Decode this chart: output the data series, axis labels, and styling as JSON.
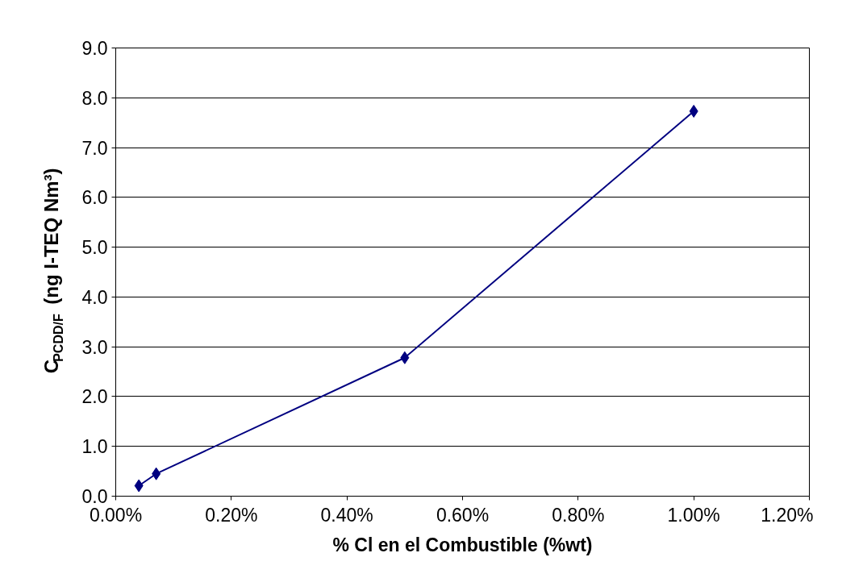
{
  "chart_data": {
    "type": "line",
    "xlabel": "% Cl en el Combustible (%wt)",
    "ylabel": "C$_{PCDD/F}$ (ng I-TEQ Nm³)",
    "x": [
      0.04,
      0.07,
      0.5,
      1.0
    ],
    "series": [
      {
        "color": "#000080",
        "values": [
          0.21,
          0.45,
          2.78,
          7.73
        ]
      }
    ],
    "xlim": [
      0,
      1.2
    ],
    "ylim": [
      0,
      9
    ],
    "xticks": [
      {
        "value": 0,
        "label": "0.00%"
      },
      {
        "value": 0.2,
        "label": "0.20%"
      },
      {
        "value": 0.4,
        "label": "0.40%"
      },
      {
        "value": 0.6,
        "label": "0.60%"
      },
      {
        "value": 0.8,
        "label": "0.80%"
      },
      {
        "value": 1.0,
        "label": "1.00%"
      },
      {
        "value": 1.2,
        "label": "1.20%"
      }
    ],
    "yticks": [
      {
        "value": 0,
        "label": "0.0"
      },
      {
        "value": 1,
        "label": "1.0"
      },
      {
        "value": 2,
        "label": "2.0"
      },
      {
        "value": 3,
        "label": "3.0"
      },
      {
        "value": 4,
        "label": "4.0"
      },
      {
        "value": 5,
        "label": "5.0"
      },
      {
        "value": 6,
        "label": "6.0"
      },
      {
        "value": 7,
        "label": "7.0"
      },
      {
        "value": 8,
        "label": "8.0"
      },
      {
        "value": 9,
        "label": "9.0"
      }
    ],
    "grid": "y",
    "marker": "diamond",
    "line_style": "solid"
  }
}
